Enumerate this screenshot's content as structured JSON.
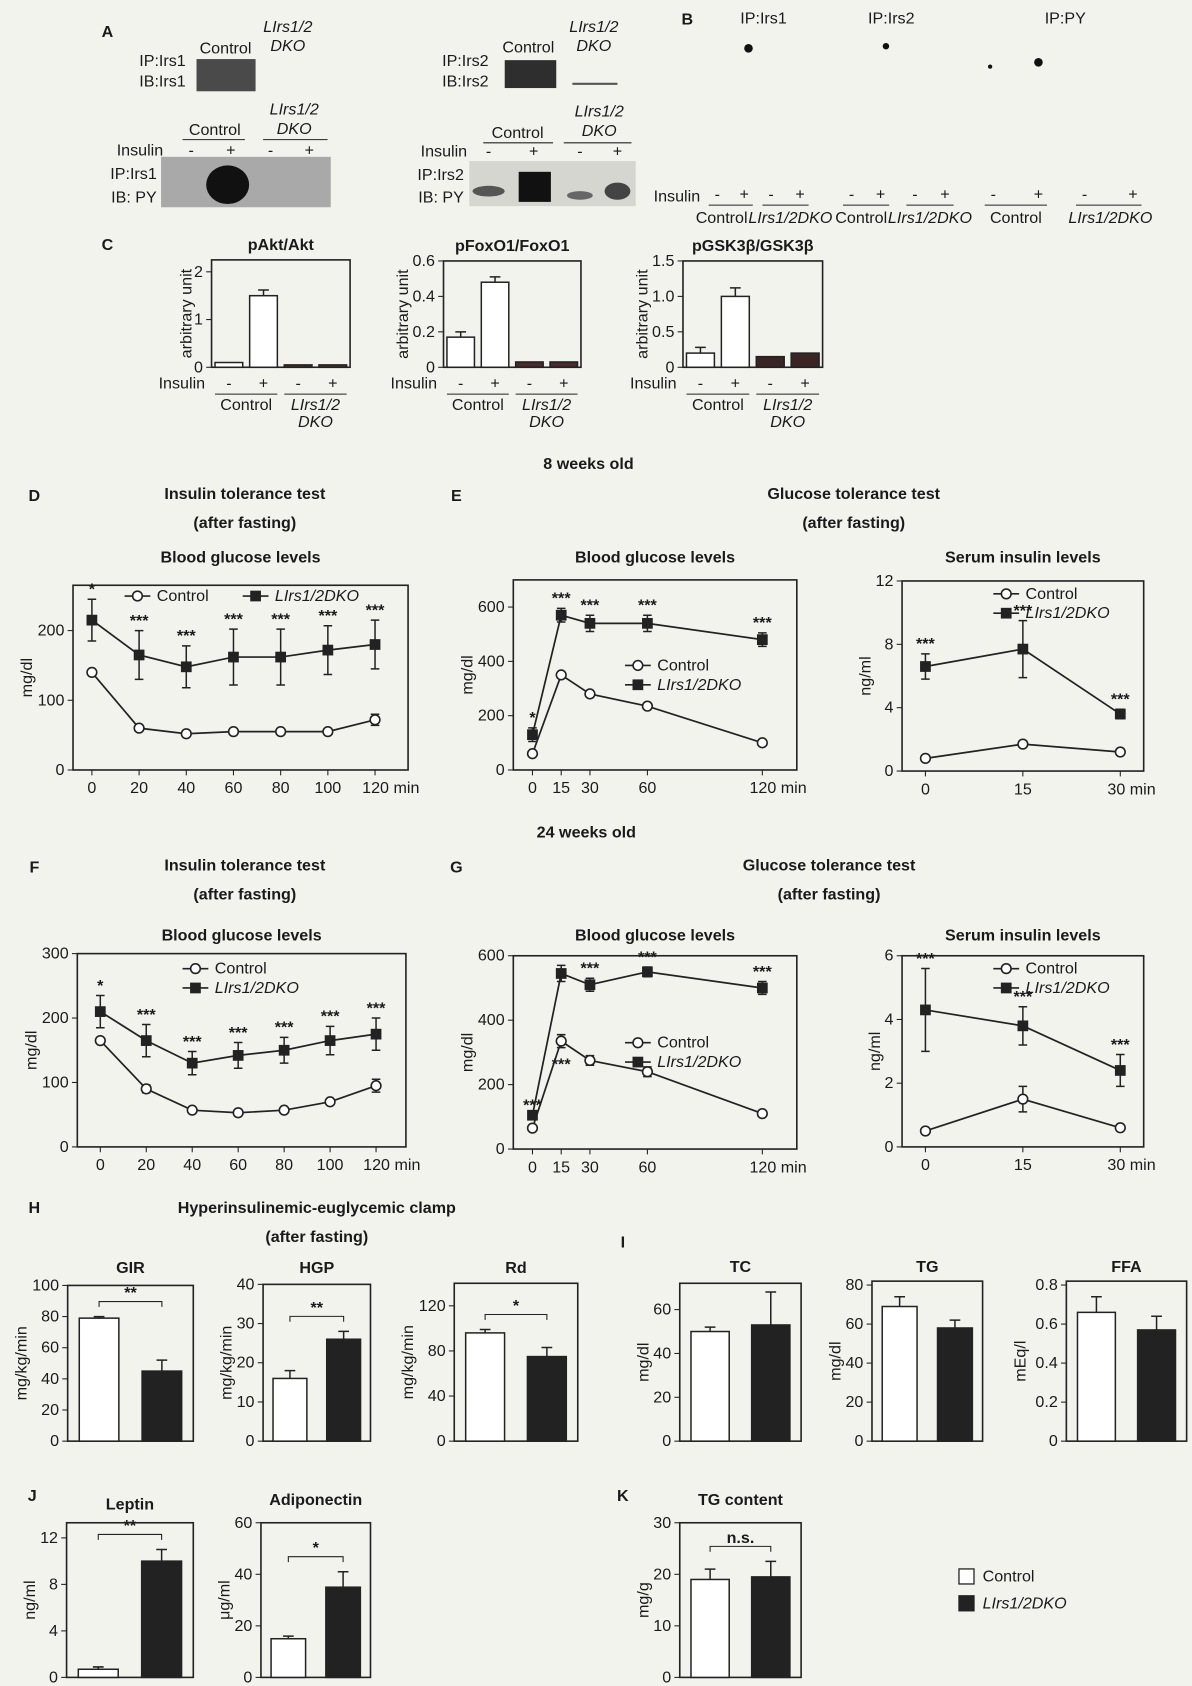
{
  "panel_letters": [
    "A",
    "B",
    "C",
    "D",
    "E",
    "F",
    "G",
    "H",
    "I",
    "J",
    "K"
  ],
  "ages": [
    "8 weeks old",
    "24 weeks old"
  ],
  "sections": [
    {
      "lines": [
        "Insulin tolerance test",
        "(after fasting)"
      ]
    },
    {
      "lines": [
        "Glucose tolerance test",
        "(after fasting)"
      ]
    },
    {
      "lines": [
        "Insulin tolerance test",
        "(after fasting)"
      ]
    },
    {
      "lines": [
        "Glucose tolerance test",
        "(after fasting)"
      ]
    },
    {
      "lines": [
        "Hyperinsulinemic-euglycemic clamp",
        "(after fasting)"
      ]
    }
  ],
  "blots": [
    {
      "rows": [
        "IP:Irs1",
        "IB:Irs1"
      ],
      "lanes": [
        "Control",
        [
          "LIrs1/2",
          "DKO"
        ]
      ]
    },
    {
      "rows": [
        "IP:Irs2",
        "IB:Irs2"
      ],
      "lanes": [
        "Control",
        [
          "LIrs1/2",
          "DKO"
        ]
      ]
    },
    {
      "rows": [
        "IP:Irs1",
        "IB: PY"
      ],
      "lanes": [
        "Control",
        [
          "LIrs1/2",
          "DKO"
        ]
      ],
      "insulin": "Insulin",
      "signs": [
        "-",
        "+",
        "-",
        "+"
      ]
    },
    {
      "rows": [
        "IP:Irs2",
        "IB: PY"
      ],
      "lanes": [
        "Control",
        [
          "LIrs1/2",
          "DKO"
        ]
      ],
      "insulin": "Insulin",
      "signs": [
        "-",
        "+",
        "-",
        "+"
      ]
    }
  ],
  "blot_b": {
    "columns": [
      "IP:Irs1",
      "IP:Irs2",
      "IP:PY"
    ],
    "insulin": "Insulin",
    "signs": [
      "-",
      "+",
      "-",
      "+",
      "-",
      "+",
      "-",
      "+",
      "-",
      "+",
      "-",
      "+"
    ],
    "groups": [
      "Control",
      "LIrs1/2DKO",
      "Control",
      "LIrs1/2DKO",
      "Control",
      "LIrs1/2DKO"
    ]
  },
  "legend": [
    {
      "label": "Control",
      "color": "#ffffff"
    },
    {
      "label": "LIrs1/2DKO",
      "color": "#222222"
    }
  ],
  "chart_data": [
    {
      "type": "bar",
      "title": "pAkt/Akt",
      "ylabel": "arbitrary unit",
      "ylim": [
        0,
        2.25
      ],
      "yticks": [
        0,
        1,
        2
      ],
      "x_title": "Insulin",
      "categories": [
        "-",
        "+",
        "-",
        "+"
      ],
      "group_labels": [
        "Control",
        [
          "LIrs1/2",
          "DKO"
        ]
      ],
      "values": [
        0.1,
        1.5,
        0.05,
        0.05
      ],
      "errors": [
        null,
        0.12,
        null,
        null
      ],
      "colors": [
        "#ffffff",
        "#ffffff",
        "#4a2a2a",
        "#4a2a2a"
      ]
    },
    {
      "type": "bar",
      "title": "pFoxO1/FoxO1",
      "ylabel": "arbitrary unit",
      "ylim": [
        0,
        0.6
      ],
      "yticks": [
        0,
        0.2,
        0.4,
        0.6
      ],
      "x_title": "Insulin",
      "categories": [
        "-",
        "+",
        "-",
        "+"
      ],
      "group_labels": [
        "Control",
        [
          "LIrs1/2",
          "DKO"
        ]
      ],
      "values": [
        0.17,
        0.48,
        0.03,
        0.03
      ],
      "errors": [
        0.03,
        0.03,
        null,
        null
      ],
      "colors": [
        "#ffffff",
        "#ffffff",
        "#4a2a2a",
        "#4a2a2a"
      ]
    },
    {
      "type": "bar",
      "title": "pGSK3β/GSK3β",
      "ylabel": "arbitrary unit",
      "ylim": [
        0,
        1.5
      ],
      "yticks": [
        0,
        0.5,
        {
          "value": 1,
          "label": "1.0"
        },
        1.5
      ],
      "x_title": "Insulin",
      "categories": [
        "-",
        "+",
        "-",
        "+"
      ],
      "group_labels": [
        "Control",
        [
          "LIrs1/2",
          "DKO"
        ]
      ],
      "values": [
        0.2,
        1.0,
        0.15,
        0.2
      ],
      "errors": [
        0.08,
        0.12,
        null,
        null
      ],
      "colors": [
        "#ffffff",
        "#ffffff",
        "#3a2424",
        "#3a2424"
      ]
    },
    {
      "type": "line",
      "title": "Blood glucose levels",
      "ylabel": "mg/dl",
      "xlim": [
        -8,
        134
      ],
      "ylim": [
        0,
        265
      ],
      "xticks": [
        0,
        20,
        40,
        60,
        80,
        100,
        {
          "value": 120,
          "label": "120 min"
        }
      ],
      "yticks": [
        0,
        100,
        200
      ],
      "legend": "top",
      "x": [
        0,
        20,
        40,
        60,
        80,
        100,
        120
      ],
      "series": [
        {
          "name": "Control",
          "color": "#222222",
          "marker": "circle",
          "values": [
            140,
            60,
            52,
            55,
            55,
            55,
            72
          ],
          "errors": [
            null,
            null,
            null,
            null,
            null,
            null,
            8
          ]
        },
        {
          "name": "LIrs1/2DKO",
          "color": "#222222",
          "marker": "square",
          "values": [
            215,
            165,
            148,
            162,
            162,
            172,
            180
          ],
          "errors": [
            30,
            35,
            30,
            40,
            40,
            35,
            35
          ],
          "significance": [
            "*",
            "***",
            "***",
            "***",
            "***",
            "***",
            "***"
          ]
        }
      ]
    },
    {
      "type": "line",
      "title": "Blood glucose levels",
      "ylabel": "mg/dl",
      "xlim": [
        -10,
        138
      ],
      "ylim": [
        0,
        700
      ],
      "xticks": [
        0,
        15,
        30,
        60,
        {
          "value": 120,
          "label": "120 min"
        }
      ],
      "yticks": [
        0,
        200,
        400,
        600
      ],
      "legend": "center right",
      "x": [
        0,
        15,
        30,
        60,
        120
      ],
      "series": [
        {
          "name": "Control",
          "color": "#222222",
          "marker": "circle",
          "values": [
            60,
            350,
            280,
            235,
            100
          ]
        },
        {
          "name": "LIrs1/2DKO",
          "color": "#222222",
          "marker": "square",
          "values": [
            130,
            570,
            540,
            540,
            480
          ],
          "errors": [
            25,
            25,
            30,
            30,
            25
          ],
          "significance": [
            "*",
            "***",
            "***",
            "***",
            "***"
          ]
        }
      ]
    },
    {
      "type": "line",
      "title": "Serum insulin levels",
      "ylabel": "ng/ml",
      "xlim": [
        -3.6,
        33.6
      ],
      "ylim": [
        0,
        12
      ],
      "xticks": [
        0,
        15,
        {
          "value": 30,
          "label": "30 min"
        }
      ],
      "yticks": [
        0,
        4,
        8,
        12
      ],
      "legend": "upper right",
      "x": [
        0,
        15,
        30
      ],
      "series": [
        {
          "name": "Control",
          "color": "#222222",
          "marker": "circle",
          "values": [
            0.8,
            1.7,
            1.2
          ]
        },
        {
          "name": "LIrs1/2DKO",
          "color": "#222222",
          "marker": "square",
          "values": [
            6.6,
            7.7,
            3.6
          ],
          "errors": [
            0.8,
            1.8,
            0.3
          ],
          "significance": [
            "***",
            "***",
            "***"
          ]
        }
      ]
    },
    {
      "type": "line",
      "title": "Blood glucose levels",
      "ylabel": "mg/dl",
      "xlim": [
        -10,
        133
      ],
      "ylim": [
        0,
        300
      ],
      "xticks": [
        0,
        20,
        40,
        60,
        80,
        100,
        {
          "value": 120,
          "label": "120 min"
        }
      ],
      "yticks": [
        0,
        100,
        200,
        300
      ],
      "legend": "upper center",
      "x": [
        0,
        20,
        40,
        60,
        80,
        100,
        120
      ],
      "series": [
        {
          "name": "Control",
          "color": "#222222",
          "marker": "circle",
          "values": [
            165,
            90,
            57,
            53,
            57,
            70,
            95
          ],
          "errors": [
            null,
            6,
            null,
            null,
            null,
            null,
            10
          ]
        },
        {
          "name": "LIrs1/2DKO",
          "color": "#222222",
          "marker": "square",
          "values": [
            210,
            165,
            130,
            142,
            150,
            165,
            175
          ],
          "errors": [
            25,
            25,
            18,
            20,
            20,
            22,
            25
          ],
          "significance": [
            "*",
            "***",
            "***",
            "***",
            "***",
            "***",
            "***"
          ]
        }
      ]
    },
    {
      "type": "line",
      "title": "Blood glucose levels",
      "ylabel": "mg/dl",
      "xlim": [
        -10,
        138
      ],
      "ylim": [
        0,
        600
      ],
      "xticks": [
        0,
        15,
        30,
        60,
        {
          "value": 120,
          "label": "120 min"
        }
      ],
      "yticks": [
        0,
        200,
        400,
        600
      ],
      "legend": "center right",
      "x": [
        0,
        15,
        30,
        60,
        120
      ],
      "series": [
        {
          "name": "Control",
          "color": "#222222",
          "marker": "circle",
          "values": [
            65,
            335,
            275,
            240,
            110
          ],
          "errors": [
            null,
            20,
            15,
            15,
            null
          ],
          "significance": [
            null,
            "***",
            null,
            null,
            null
          ]
        },
        {
          "name": "LIrs1/2DKO",
          "color": "#222222",
          "marker": "square",
          "values": [
            105,
            545,
            510,
            550,
            500
          ],
          "errors": [
            null,
            25,
            20,
            15,
            20
          ],
          "significance": [
            "***",
            null,
            "***",
            "***",
            "***"
          ]
        }
      ]
    },
    {
      "type": "line",
      "title": "Serum insulin levels",
      "ylabel": "ng/ml",
      "xlim": [
        -3.6,
        33.6
      ],
      "ylim": [
        0,
        6
      ],
      "xticks": [
        0,
        15,
        {
          "value": 30,
          "label": "30 min"
        }
      ],
      "yticks": [
        0,
        2,
        4,
        6
      ],
      "legend": "upper right",
      "x": [
        0,
        15,
        30
      ],
      "series": [
        {
          "name": "Control",
          "color": "#222222",
          "marker": "circle",
          "values": [
            0.5,
            1.5,
            0.6
          ],
          "errors": [
            null,
            0.4,
            null
          ]
        },
        {
          "name": "LIrs1/2DKO",
          "color": "#222222",
          "marker": "square",
          "values": [
            4.3,
            3.8,
            2.4
          ],
          "errors": [
            1.3,
            0.6,
            0.5
          ],
          "significance": [
            "***",
            "***",
            "***"
          ]
        }
      ]
    },
    {
      "type": "bar",
      "title": "GIR",
      "ylabel": "mg/kg/min",
      "ylim": [
        0,
        100
      ],
      "yticks": [
        0,
        20,
        40,
        60,
        80,
        100
      ],
      "values": [
        79,
        45
      ],
      "errors": [
        1,
        7
      ],
      "significance": "**",
      "colors": [
        "#ffffff",
        "#222222"
      ]
    },
    {
      "type": "bar",
      "title": "HGP",
      "ylabel": "mg/kg/min",
      "ylim": [
        0,
        40
      ],
      "yticks": [
        0,
        10,
        20,
        30,
        40
      ],
      "values": [
        16,
        26
      ],
      "errors": [
        2,
        2
      ],
      "significance": "**",
      "colors": [
        "#ffffff",
        "#222222"
      ]
    },
    {
      "type": "bar",
      "title": "Rd",
      "ylabel": "mg/kg/min",
      "ylim": [
        0,
        140
      ],
      "yticks": [
        0,
        40,
        80,
        120
      ],
      "values": [
        96,
        75
      ],
      "errors": [
        3,
        8
      ],
      "significance": "*",
      "colors": [
        "#ffffff",
        "#222222"
      ]
    },
    {
      "type": "bar",
      "title": "TC",
      "ylabel": "mg/dl",
      "ylim": [
        0,
        72
      ],
      "yticks": [
        0,
        20,
        40,
        60
      ],
      "values": [
        50,
        53
      ],
      "errors": [
        2,
        15
      ],
      "colors": [
        "#ffffff",
        "#222222"
      ]
    },
    {
      "type": "bar",
      "title": "TG",
      "ylabel": "mg/dl",
      "ylim": [
        0,
        82
      ],
      "yticks": [
        0,
        20,
        40,
        60,
        80
      ],
      "values": [
        69,
        58
      ],
      "errors": [
        5,
        4
      ],
      "colors": [
        "#ffffff",
        "#222222"
      ]
    },
    {
      "type": "bar",
      "title": "FFA",
      "ylabel": "mEq/l",
      "ylim": [
        0,
        0.82
      ],
      "yticks": [
        0,
        0.2,
        0.4,
        0.6,
        0.8
      ],
      "values": [
        0.66,
        0.57
      ],
      "errors": [
        0.08,
        0.07
      ],
      "colors": [
        "#ffffff",
        "#222222"
      ]
    },
    {
      "type": "bar",
      "title": "Leptin",
      "ylabel": "ng/ml",
      "ylim": [
        0,
        13.3
      ],
      "yticks": [
        0,
        4,
        8,
        12
      ],
      "values": [
        0.7,
        10
      ],
      "errors": [
        0.2,
        1
      ],
      "significance": "**",
      "colors": [
        "#ffffff",
        "#222222"
      ]
    },
    {
      "type": "bar",
      "title": "Adiponectin",
      "ylabel": "μg/ml",
      "ylim": [
        0,
        60
      ],
      "yticks": [
        0,
        20,
        40,
        60
      ],
      "values": [
        15,
        35
      ],
      "errors": [
        1,
        6
      ],
      "significance": "*",
      "colors": [
        "#ffffff",
        "#222222"
      ]
    },
    {
      "type": "bar",
      "title": "TG content",
      "ylabel": "mg/g",
      "ylim": [
        0,
        30
      ],
      "yticks": [
        0,
        10,
        20,
        30
      ],
      "values": [
        19,
        19.5
      ],
      "errors": [
        2,
        3
      ],
      "significance": "n.s.",
      "colors": [
        "#ffffff",
        "#222222"
      ]
    }
  ]
}
